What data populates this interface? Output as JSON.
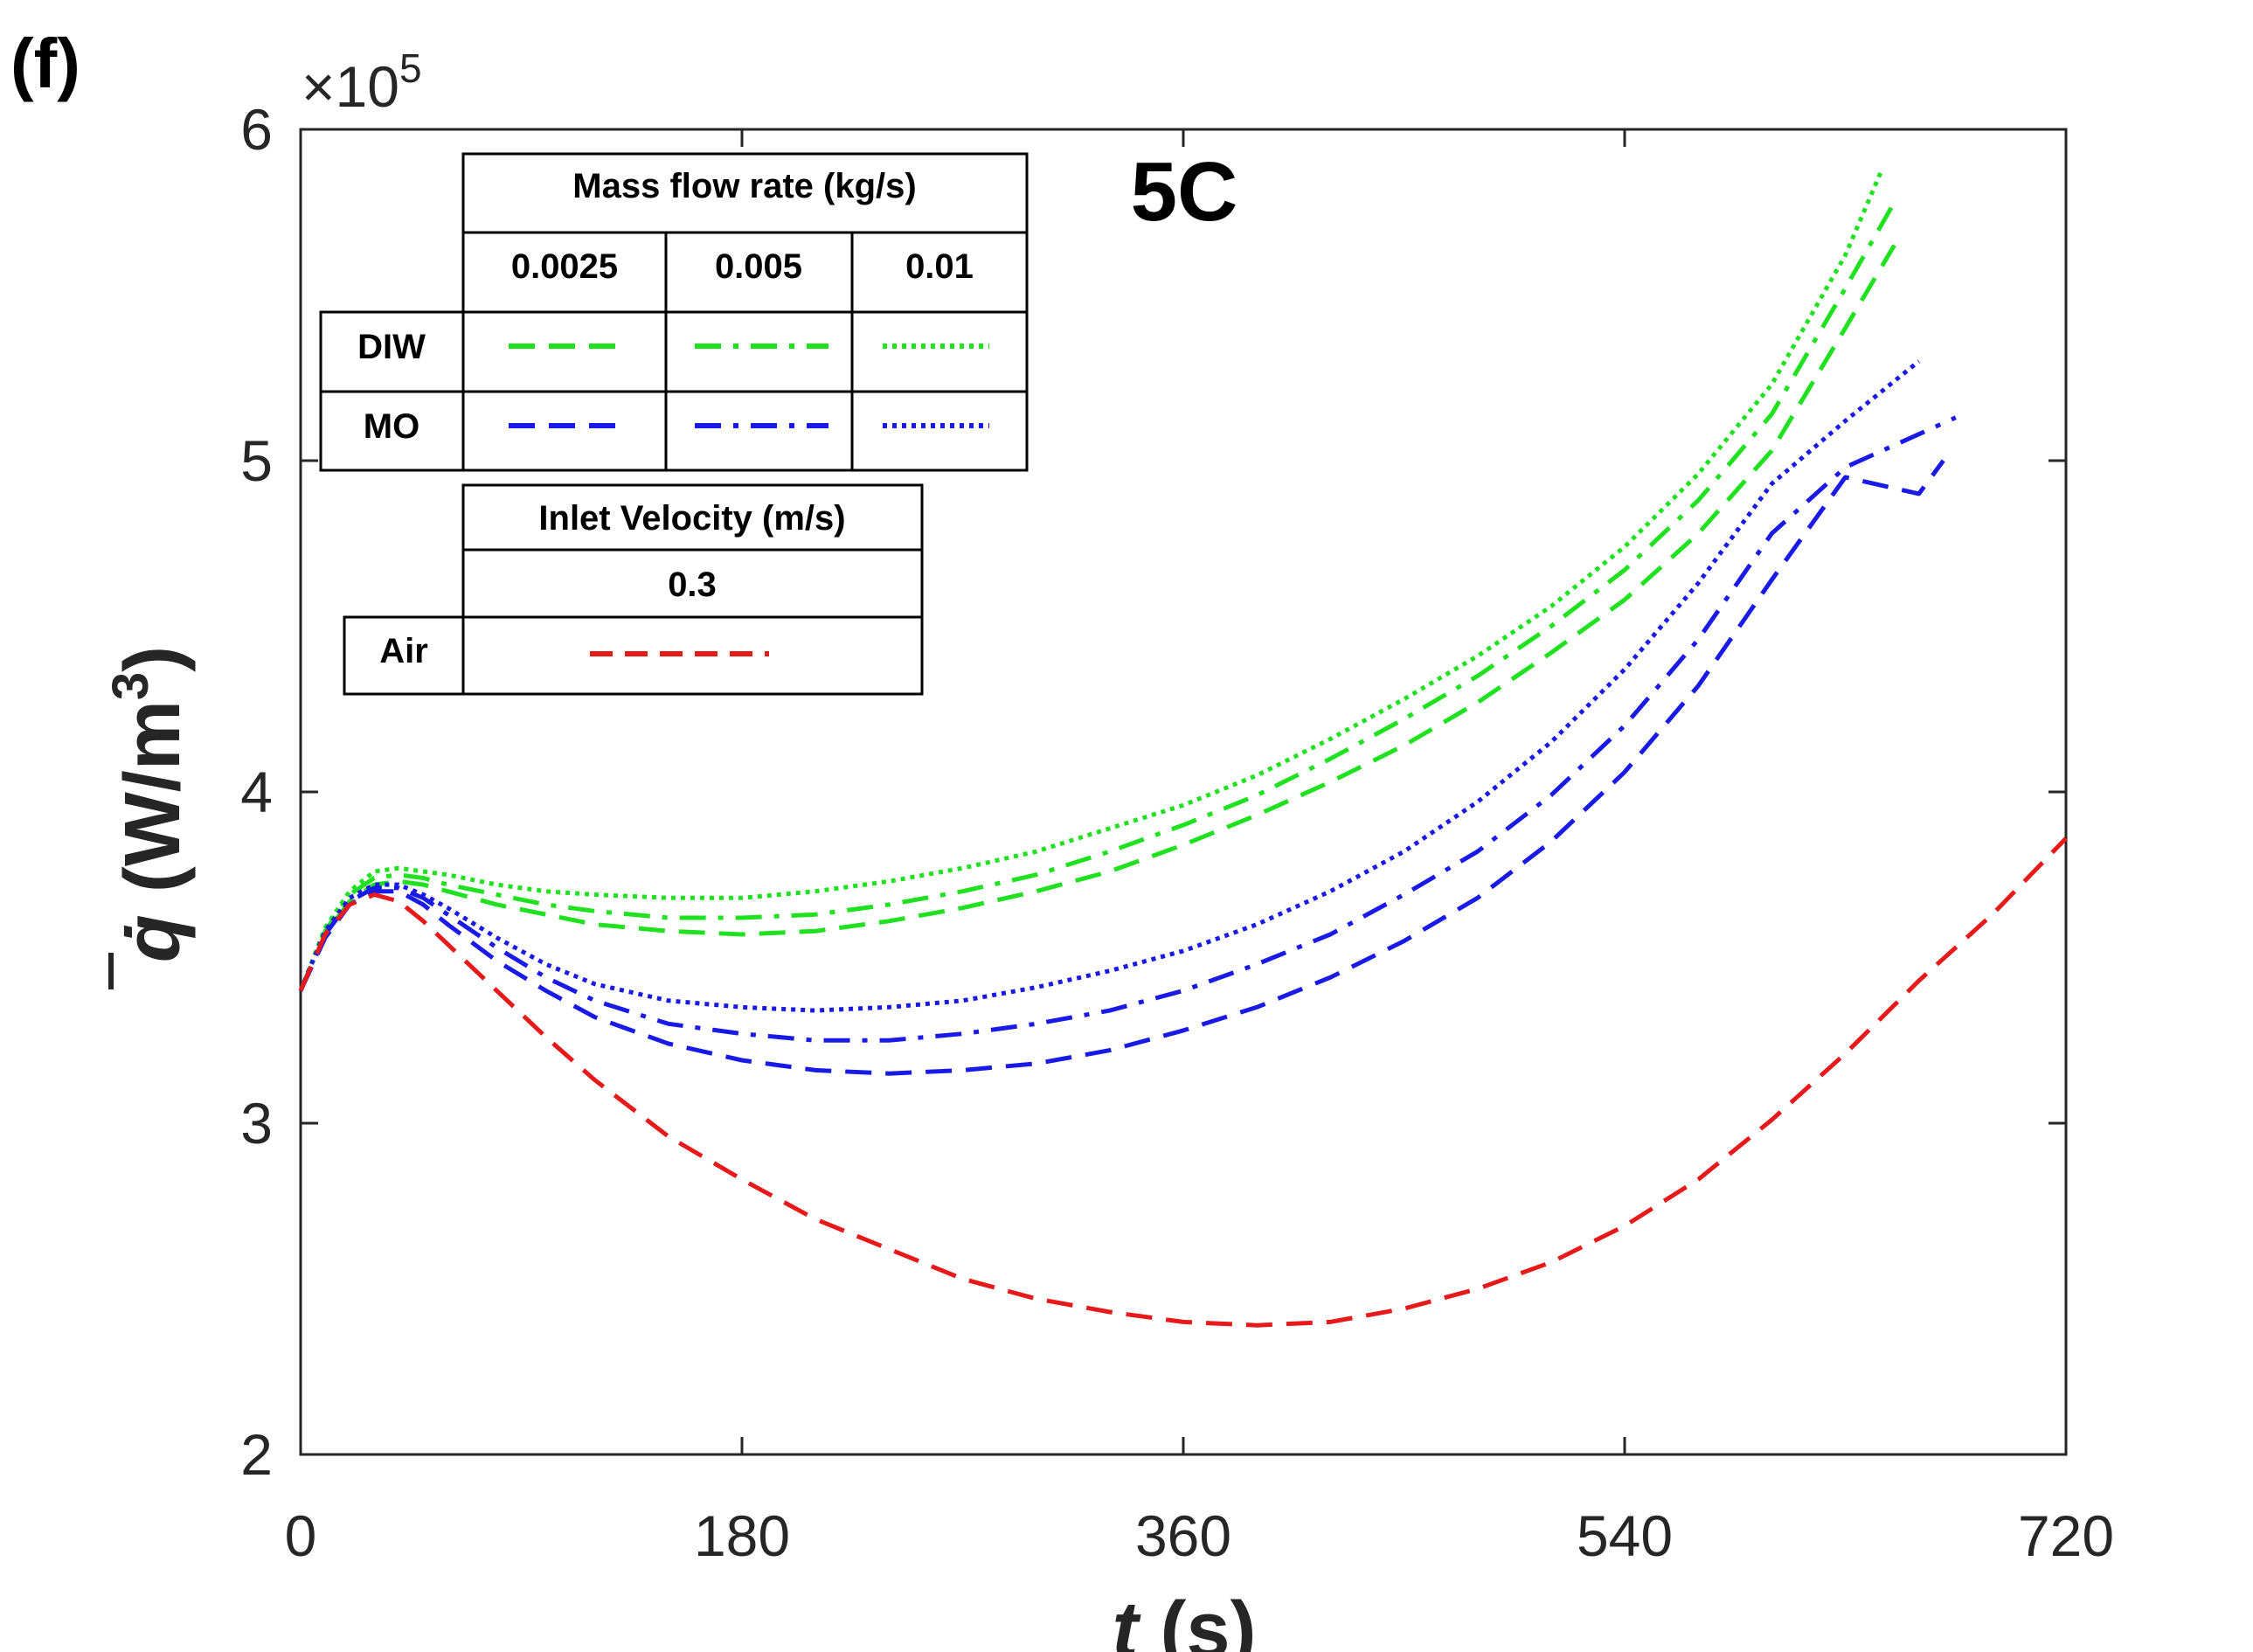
{
  "panel_label": "(f)",
  "chart_data": {
    "type": "line",
    "title": "5C",
    "xlabel_var": "t",
    "xlabel_unit": " (s)",
    "ylabel_unit": " (W/m",
    "ylabel_sup": "3",
    "ylabel_close": ")",
    "ylabel_symbol": "q̇",
    "y_multiplier_base": "×10",
    "y_multiplier_exp": "5",
    "xlim": [
      0,
      720
    ],
    "ylim": [
      2,
      6
    ],
    "xticks": [
      0,
      180,
      360,
      540,
      720
    ],
    "yticks": [
      2,
      3,
      4,
      5,
      6
    ],
    "series": [
      {
        "name": "DIW 0.0025 kg/s",
        "color": "#1fe11f",
        "style": "dashed",
        "x": [
          0,
          10,
          20,
          30,
          40,
          50,
          60,
          80,
          100,
          120,
          150,
          180,
          210,
          240,
          270,
          300,
          330,
          360,
          390,
          420,
          450,
          480,
          510,
          540,
          570,
          600,
          630,
          650
        ],
        "y": [
          3.4,
          3.57,
          3.67,
          3.72,
          3.73,
          3.72,
          3.7,
          3.66,
          3.63,
          3.6,
          3.58,
          3.57,
          3.58,
          3.61,
          3.65,
          3.7,
          3.76,
          3.84,
          3.93,
          4.03,
          4.14,
          4.27,
          4.42,
          4.58,
          4.78,
          5.03,
          5.4,
          5.65
        ]
      },
      {
        "name": "DIW 0.005 kg/s",
        "color": "#1fe11f",
        "style": "dashdot",
        "x": [
          0,
          10,
          20,
          30,
          40,
          50,
          60,
          80,
          100,
          120,
          150,
          180,
          210,
          240,
          270,
          300,
          330,
          360,
          390,
          420,
          450,
          480,
          510,
          540,
          570,
          600,
          630,
          650
        ],
        "y": [
          3.4,
          3.58,
          3.69,
          3.74,
          3.75,
          3.74,
          3.72,
          3.69,
          3.66,
          3.64,
          3.62,
          3.62,
          3.63,
          3.66,
          3.7,
          3.75,
          3.82,
          3.9,
          3.99,
          4.1,
          4.22,
          4.35,
          4.5,
          4.67,
          4.88,
          5.14,
          5.52,
          5.78
        ]
      },
      {
        "name": "DIW 0.01 kg/s",
        "color": "#1fe11f",
        "style": "dotted",
        "x": [
          0,
          10,
          20,
          30,
          40,
          50,
          60,
          80,
          100,
          120,
          150,
          180,
          210,
          240,
          270,
          300,
          330,
          360,
          390,
          420,
          450,
          480,
          510,
          540,
          570,
          600,
          630,
          645
        ],
        "y": [
          3.4,
          3.59,
          3.7,
          3.76,
          3.77,
          3.76,
          3.75,
          3.72,
          3.7,
          3.69,
          3.68,
          3.68,
          3.7,
          3.73,
          3.77,
          3.82,
          3.89,
          3.96,
          4.05,
          4.16,
          4.28,
          4.41,
          4.56,
          4.74,
          4.96,
          5.23,
          5.62,
          5.88
        ]
      },
      {
        "name": "MO 0.0025 kg/s",
        "color": "#1a1ae6",
        "style": "dashed",
        "x": [
          0,
          10,
          20,
          30,
          40,
          50,
          60,
          80,
          100,
          120,
          150,
          180,
          210,
          240,
          270,
          300,
          330,
          360,
          390,
          420,
          450,
          480,
          510,
          540,
          570,
          600,
          630,
          660,
          670
        ],
        "y": [
          3.4,
          3.56,
          3.66,
          3.7,
          3.7,
          3.66,
          3.6,
          3.49,
          3.4,
          3.32,
          3.24,
          3.19,
          3.16,
          3.15,
          3.16,
          3.18,
          3.22,
          3.28,
          3.35,
          3.44,
          3.55,
          3.68,
          3.85,
          4.06,
          4.32,
          4.64,
          4.95,
          4.9,
          5.0
        ]
      },
      {
        "name": "MO 0.005 kg/s",
        "color": "#1a1ae6",
        "style": "dashdot",
        "x": [
          0,
          10,
          20,
          30,
          40,
          50,
          60,
          80,
          100,
          120,
          150,
          180,
          210,
          240,
          270,
          300,
          330,
          360,
          390,
          420,
          450,
          480,
          510,
          540,
          570,
          600,
          630,
          660,
          675
        ],
        "y": [
          3.4,
          3.57,
          3.67,
          3.71,
          3.71,
          3.68,
          3.63,
          3.53,
          3.44,
          3.37,
          3.3,
          3.27,
          3.25,
          3.25,
          3.27,
          3.3,
          3.34,
          3.4,
          3.48,
          3.57,
          3.69,
          3.82,
          3.99,
          4.2,
          4.46,
          4.78,
          4.98,
          5.08,
          5.13
        ]
      },
      {
        "name": "MO 0.01 kg/s",
        "color": "#1a1ae6",
        "style": "dotted",
        "x": [
          0,
          10,
          20,
          30,
          40,
          50,
          60,
          80,
          100,
          120,
          150,
          180,
          210,
          240,
          270,
          300,
          330,
          360,
          390,
          420,
          450,
          480,
          510,
          540,
          570,
          600,
          630,
          660
        ],
        "y": [
          3.4,
          3.58,
          3.68,
          3.72,
          3.72,
          3.69,
          3.65,
          3.56,
          3.48,
          3.42,
          3.37,
          3.35,
          3.34,
          3.35,
          3.37,
          3.41,
          3.46,
          3.52,
          3.6,
          3.7,
          3.82,
          3.97,
          4.15,
          4.37,
          4.63,
          4.93,
          5.12,
          5.3
        ]
      },
      {
        "name": "Air 0.3 m/s",
        "color": "#e61a1a",
        "style": "dashed",
        "x": [
          0,
          10,
          20,
          30,
          40,
          50,
          60,
          80,
          100,
          120,
          150,
          180,
          210,
          240,
          270,
          300,
          330,
          360,
          390,
          420,
          450,
          480,
          510,
          540,
          570,
          600,
          630,
          660,
          690,
          720
        ],
        "y": [
          3.4,
          3.57,
          3.66,
          3.69,
          3.67,
          3.61,
          3.54,
          3.4,
          3.26,
          3.13,
          2.96,
          2.83,
          2.71,
          2.62,
          2.53,
          2.47,
          2.43,
          2.4,
          2.39,
          2.4,
          2.44,
          2.5,
          2.58,
          2.69,
          2.83,
          3.01,
          3.21,
          3.43,
          3.63,
          3.86
        ]
      }
    ],
    "legend": {
      "flow_header": "Mass flow rate (kg/s)",
      "flow_values": [
        "0.0025",
        "0.005",
        "0.01"
      ],
      "rows": [
        "DIW",
        "MO"
      ],
      "velocity_header": "Inlet Velocity (m/s)",
      "velocity_value": "0.3",
      "air_row": "Air"
    }
  }
}
